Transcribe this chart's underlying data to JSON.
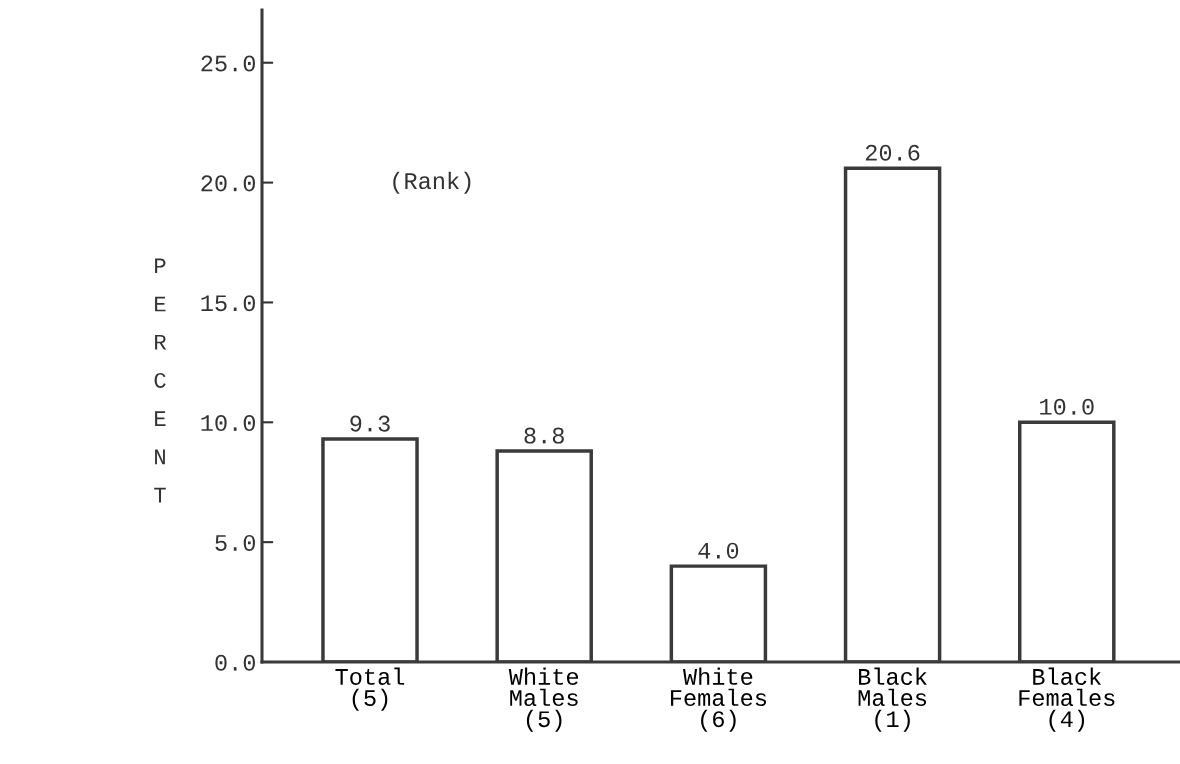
{
  "chart_data": {
    "type": "bar",
    "ylabel": "PERCENT",
    "categories": [
      "Total\n(5)",
      "White\nMales\n(5)",
      "White\nFemales\n(6)",
      "Black\nMales\n(1)",
      "Black\nFemales\n(4)"
    ],
    "values": [
      9.3,
      8.8,
      4.0,
      20.6,
      10.0
    ],
    "color": "#ffffff",
    "ylim": [
      0,
      27.2
    ],
    "yticks": [
      {
        "value": 0,
        "label": "0.0"
      },
      {
        "value": 5,
        "label": "5.0"
      },
      {
        "value": 10,
        "label": "10.0"
      },
      {
        "value": 15,
        "label": "15.0"
      },
      {
        "value": 20,
        "label": "20.0"
      },
      {
        "value": 25,
        "label": "25.0"
      }
    ],
    "value_labels": [
      "9.3",
      "8.8",
      "4.0",
      "20.6",
      "10.0"
    ],
    "annotations": [
      "(Rank)"
    ],
    "grid": false,
    "legend": false
  }
}
